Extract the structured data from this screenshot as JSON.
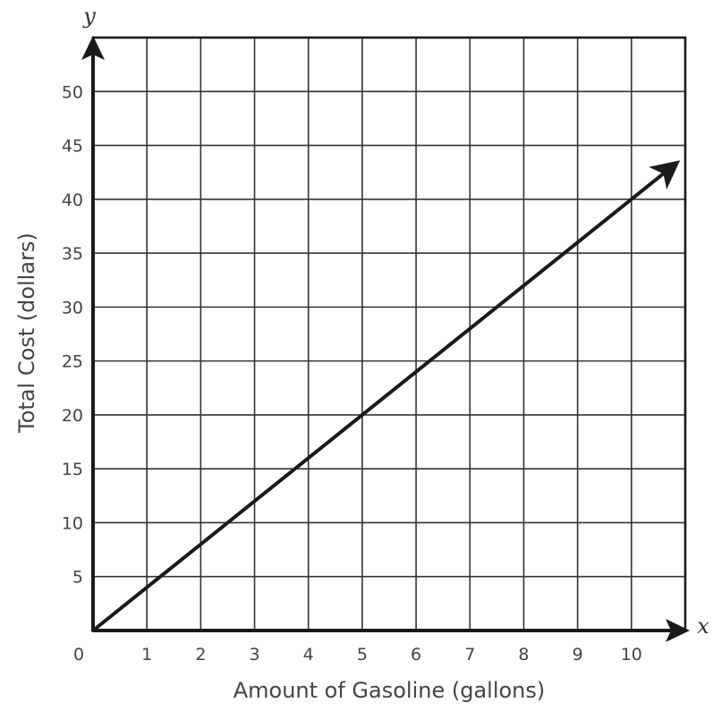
{
  "chart_data": {
    "type": "line",
    "xlabel": "Amount of Gasoline (gallons)",
    "ylabel": "Total Cost (dollars)",
    "x_axis_variable": "x",
    "y_axis_variable": "y",
    "origin_label": "0",
    "xlim": [
      0,
      11
    ],
    "ylim": [
      0,
      55
    ],
    "x_ticks": [
      1,
      2,
      3,
      4,
      5,
      6,
      7,
      8,
      9,
      10
    ],
    "y_ticks": [
      5,
      10,
      15,
      20,
      25,
      30,
      35,
      40,
      45,
      50
    ],
    "grid": true,
    "series": [
      {
        "x": [
          0,
          10.8
        ],
        "y": [
          0,
          43.2
        ]
      }
    ],
    "colors": {
      "line": "#1a1a1a",
      "grid": "#333333",
      "text": "#444444"
    }
  }
}
